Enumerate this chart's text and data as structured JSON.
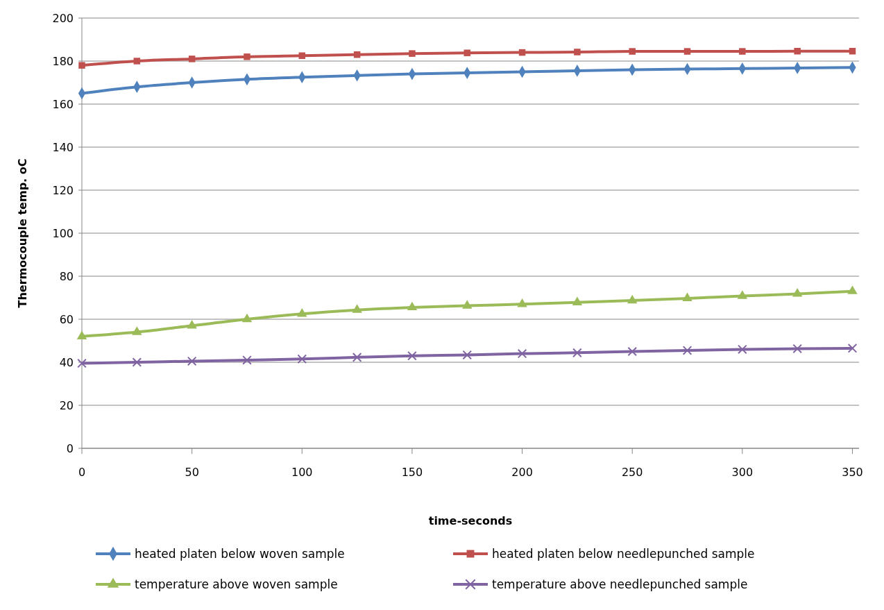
{
  "chart_data": {
    "type": "line",
    "xlabel": "time-seconds",
    "ylabel": "Thermocouple temp. oC",
    "x": [
      0,
      25,
      50,
      75,
      100,
      125,
      150,
      175,
      200,
      225,
      250,
      275,
      300,
      325,
      350
    ],
    "series": [
      {
        "name": "heated platen below woven sample",
        "color": "#4f81bd",
        "marker": "diamond",
        "values": [
          165,
          168,
          170,
          171.5,
          172.5,
          173.3,
          174,
          174.5,
          175,
          175.5,
          176,
          176.3,
          176.5,
          176.8,
          177
        ]
      },
      {
        "name": "heated platen below needlepunched sample",
        "color": "#c0504d",
        "marker": "square",
        "values": [
          178,
          180,
          181,
          182,
          182.5,
          183,
          183.5,
          183.8,
          184,
          184.2,
          184.5,
          184.5,
          184.5,
          184.6,
          184.6
        ]
      },
      {
        "name": "temperature above woven sample",
        "color": "#9bbb59",
        "marker": "triangle",
        "values": [
          52,
          54,
          57,
          60,
          62.5,
          64.3,
          65.5,
          66.3,
          67,
          67.8,
          68.7,
          69.7,
          70.8,
          71.8,
          73
        ]
      },
      {
        "name": "temperature above needlepunched sample",
        "color": "#8064a2",
        "marker": "cross",
        "values": [
          39.5,
          40,
          40.5,
          41,
          41.5,
          42.3,
          43,
          43.4,
          44,
          44.4,
          45,
          45.5,
          46,
          46.3,
          46.5
        ]
      }
    ],
    "xlim": [
      0,
      353
    ],
    "xticks": [
      0,
      50,
      100,
      150,
      200,
      250,
      300,
      350
    ],
    "ylim": [
      0,
      200
    ],
    "yticks": [
      0,
      20,
      40,
      60,
      80,
      100,
      120,
      140,
      160,
      180,
      200
    ],
    "grid": "y",
    "legend": "bottom",
    "line_style": "solid"
  }
}
